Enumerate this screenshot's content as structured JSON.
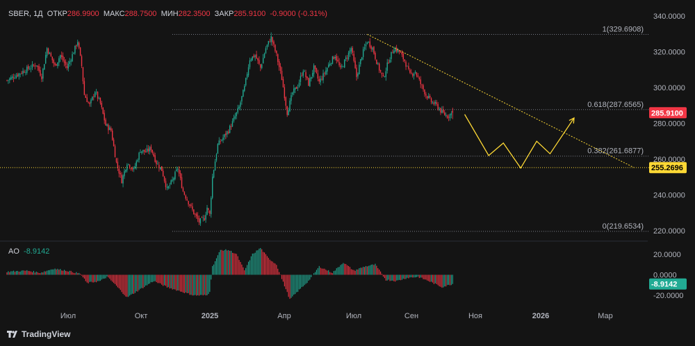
{
  "legend": {
    "symbol": "SBER, 1Д",
    "open_label": "ОТКР",
    "open": "286.9900",
    "high_label": "МАКС",
    "high": "288.7500",
    "low_label": "МИН",
    "low": "282.3500",
    "close_label": "ЗАКР",
    "close": "285.9100",
    "change": "-0.9000 (-0.31%)"
  },
  "ao_legend": {
    "name": "AO",
    "value": "-8.9142"
  },
  "brand": {
    "name": "TradingView"
  },
  "colors": {
    "up": "#22ab94",
    "down": "#f23645",
    "accent": "#fdd835",
    "background": "#141414"
  },
  "chart_data": {
    "type": "candlestick",
    "price_ylim": [
      215,
      345
    ],
    "price_ticks": [
      "340.0000",
      "320.0000",
      "300.0000",
      "280.0000",
      "260.0000",
      "240.0000",
      "220.0000"
    ],
    "x_ticks": [
      "Июл",
      "Окт",
      "2025",
      "Апр",
      "Июл",
      "Сен",
      "Ноя",
      "2026",
      "Мар"
    ],
    "anchors": [
      [
        0,
        304
      ],
      [
        12,
        309
      ],
      [
        22,
        313
      ],
      [
        26,
        306
      ],
      [
        30,
        322
      ],
      [
        36,
        312
      ],
      [
        40,
        318
      ],
      [
        45,
        311
      ],
      [
        50,
        320
      ],
      [
        53,
        326
      ],
      [
        56,
        312
      ],
      [
        58,
        296
      ],
      [
        62,
        290
      ],
      [
        66,
        298
      ],
      [
        70,
        291
      ],
      [
        74,
        279
      ],
      [
        78,
        276
      ],
      [
        82,
        258
      ],
      [
        86,
        248
      ],
      [
        90,
        258
      ],
      [
        95,
        254
      ],
      [
        100,
        265
      ],
      [
        104,
        264
      ],
      [
        108,
        266
      ],
      [
        112,
        258
      ],
      [
        116,
        254
      ],
      [
        120,
        243
      ],
      [
        124,
        248
      ],
      [
        128,
        255
      ],
      [
        132,
        242
      ],
      [
        136,
        236
      ],
      [
        140,
        230
      ],
      [
        144,
        225
      ],
      [
        148,
        227
      ],
      [
        150,
        233
      ],
      [
        152,
        229
      ],
      [
        154,
        250
      ],
      [
        158,
        268
      ],
      [
        162,
        272
      ],
      [
        166,
        276
      ],
      [
        170,
        282
      ],
      [
        174,
        289
      ],
      [
        178,
        300
      ],
      [
        182,
        316
      ],
      [
        186,
        318
      ],
      [
        190,
        311
      ],
      [
        194,
        322
      ],
      [
        198,
        328
      ],
      [
        202,
        318
      ],
      [
        206,
        305
      ],
      [
        210,
        286
      ],
      [
        214,
        297
      ],
      [
        218,
        301
      ],
      [
        222,
        310
      ],
      [
        226,
        302
      ],
      [
        230,
        311
      ],
      [
        234,
        303
      ],
      [
        238,
        308
      ],
      [
        242,
        314
      ],
      [
        246,
        318
      ],
      [
        250,
        310
      ],
      [
        254,
        316
      ],
      [
        258,
        322
      ],
      [
        262,
        306
      ],
      [
        266,
        318
      ],
      [
        270,
        326
      ],
      [
        274,
        322
      ],
      [
        278,
        312
      ],
      [
        282,
        305
      ],
      [
        286,
        315
      ],
      [
        290,
        322
      ],
      [
        294,
        320
      ],
      [
        298,
        315
      ],
      [
        302,
        307
      ],
      [
        306,
        309
      ],
      [
        310,
        302
      ],
      [
        314,
        296
      ],
      [
        318,
        292
      ],
      [
        322,
        290
      ],
      [
        326,
        286
      ],
      [
        330,
        284
      ],
      [
        334,
        286
      ]
    ],
    "last_candle": {
      "open": 286.99,
      "high": 288.75,
      "low": 282.35,
      "close": 285.91
    },
    "fib_levels": [
      {
        "label": "1(329.6908)",
        "value": 329.6908
      },
      {
        "label": "0.618(287.6565)",
        "value": 287.6565
      },
      {
        "label": "0.382(261.6877)",
        "value": 261.6877
      },
      {
        "label": "0(219.6534)",
        "value": 219.6534
      }
    ],
    "horizontal_line": {
      "value": 255.2696,
      "label": "255.2696"
    },
    "current_price_label": "285.9100",
    "trendline": {
      "from": {
        "bar": 270,
        "price": 329.69
      },
      "to": {
        "bar": 470,
        "price": 255.27
      }
    },
    "projection": [
      [
        343,
        285
      ],
      [
        361,
        262
      ],
      [
        372,
        269
      ],
      [
        385,
        255
      ],
      [
        397,
        270
      ],
      [
        407,
        263
      ],
      [
        425,
        283
      ]
    ],
    "ao": {
      "ylim": [
        -30,
        32
      ],
      "ticks": [
        "20.0000",
        "0.0000",
        "-20.0000"
      ],
      "current_label": "-8.9142",
      "anchors": [
        [
          0,
          3
        ],
        [
          15,
          4
        ],
        [
          25,
          2
        ],
        [
          35,
          6
        ],
        [
          45,
          4
        ],
        [
          55,
          1
        ],
        [
          60,
          -8
        ],
        [
          70,
          -6
        ],
        [
          75,
          -2
        ],
        [
          80,
          -8
        ],
        [
          90,
          -22
        ],
        [
          100,
          -14
        ],
        [
          110,
          -6
        ],
        [
          120,
          -12
        ],
        [
          130,
          -16
        ],
        [
          140,
          -20
        ],
        [
          150,
          -20
        ],
        [
          152,
          -16
        ],
        [
          154,
          8
        ],
        [
          160,
          24
        ],
        [
          166,
          24
        ],
        [
          172,
          20
        ],
        [
          178,
          4
        ],
        [
          184,
          20
        ],
        [
          190,
          26
        ],
        [
          196,
          16
        ],
        [
          202,
          10
        ],
        [
          206,
          -4
        ],
        [
          212,
          -24
        ],
        [
          218,
          -16
        ],
        [
          226,
          -6
        ],
        [
          234,
          8
        ],
        [
          244,
          2
        ],
        [
          252,
          12
        ],
        [
          260,
          4
        ],
        [
          268,
          8
        ],
        [
          276,
          10
        ],
        [
          284,
          -5
        ],
        [
          292,
          -6
        ],
        [
          300,
          -3
        ],
        [
          308,
          -2
        ],
        [
          316,
          -6
        ],
        [
          326,
          -12
        ],
        [
          334,
          -8.9
        ]
      ]
    }
  }
}
